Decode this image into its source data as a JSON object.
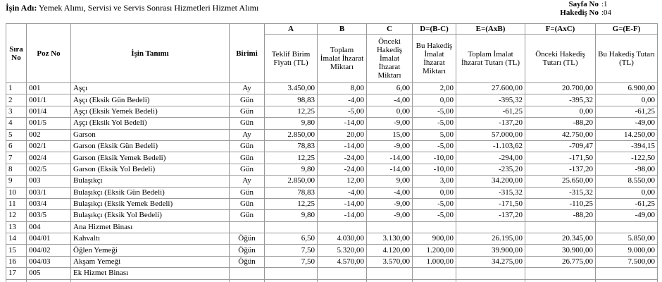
{
  "header": {
    "label": "İşin Adı:",
    "title": "Yemek Alımı, Servisi ve Servis Sonrası Hizmetleri Hizmet Alımı",
    "page_label": "Sayfa No",
    "page_value": ":1",
    "hakedis_label": "Hakediş No",
    "hakedis_value": ":04"
  },
  "table": {
    "columns": [
      "Sıra No",
      "Poz No",
      "İşin Tanımı",
      "Birimi",
      "Teklif Birim Fiyatı (TL)",
      "Toplam İmalat İhzarat Miktarı",
      "Önceki Hakediş İmalat İhzarat Miktarı",
      "Bu Hakediş İmalat İhzarat Miktarı",
      "Toplam İmalat İhzarat Tutarı (TL)",
      "Önceki Hakediş Tutarı (TL)",
      "Bu Hakediş Tutarı (TL)"
    ],
    "letters": [
      "A",
      "B",
      "C",
      "D=(B-C)",
      "E=(AxB)",
      "F=(AxC)",
      "G=(E-F)"
    ],
    "rows": [
      [
        "1",
        "001",
        "Aşçı",
        "Ay",
        "3.450,00",
        "8,00",
        "6,00",
        "2,00",
        "27.600,00",
        "20.700,00",
        "6.900,00"
      ],
      [
        "2",
        "001/1",
        "Aşçı (Eksik Gün Bedeli)",
        "Gün",
        "98,83",
        "-4,00",
        "-4,00",
        "0,00",
        "-395,32",
        "-395,32",
        "0,00"
      ],
      [
        "3",
        "001/4",
        "Aşçı (Eksik Yemek Bedeli)",
        "Gün",
        "12,25",
        "-5,00",
        "0,00",
        "-5,00",
        "-61,25",
        "0,00",
        "-61,25"
      ],
      [
        "4",
        "001/5",
        "Aşçı (Eksik Yol Bedeli)",
        "Gün",
        "9,80",
        "-14,00",
        "-9,00",
        "-5,00",
        "-137,20",
        "-88,20",
        "-49,00"
      ],
      [
        "5",
        "002",
        "Garson",
        "Ay",
        "2.850,00",
        "20,00",
        "15,00",
        "5,00",
        "57.000,00",
        "42.750,00",
        "14.250,00"
      ],
      [
        "6",
        "002/1",
        "Garson (Eksik Gün Bedeli)",
        "Gün",
        "78,83",
        "-14,00",
        "-9,00",
        "-5,00",
        "-1.103,62",
        "-709,47",
        "-394,15"
      ],
      [
        "7",
        "002/4",
        "Garson (Eksik Yemek Bedeli)",
        "Gün",
        "12,25",
        "-24,00",
        "-14,00",
        "-10,00",
        "-294,00",
        "-171,50",
        "-122,50"
      ],
      [
        "8",
        "002/5",
        "Garson (Eksik Yol Bedeli)",
        "Gün",
        "9,80",
        "-24,00",
        "-14,00",
        "-10,00",
        "-235,20",
        "-137,20",
        "-98,00"
      ],
      [
        "9",
        "003",
        "Bulaşıkçı",
        "Ay",
        "2.850,00",
        "12,00",
        "9,00",
        "3,00",
        "34.200,00",
        "25.650,00",
        "8.550,00"
      ],
      [
        "10",
        "003/1",
        "Bulaşıkçı (Eksik Gün Bedeli)",
        "Gün",
        "78,83",
        "-4,00",
        "-4,00",
        "0,00",
        "-315,32",
        "-315,32",
        "0,00"
      ],
      [
        "11",
        "003/4",
        "Bulaşıkçı (Eksik Yemek Bedeli)",
        "Gün",
        "12,25",
        "-14,00",
        "-9,00",
        "-5,00",
        "-171,50",
        "-110,25",
        "-61,25"
      ],
      [
        "12",
        "003/5",
        "Bulaşıkçı (Eksik Yol Bedeli)",
        "Gün",
        "9,80",
        "-14,00",
        "-9,00",
        "-5,00",
        "-137,20",
        "-88,20",
        "-49,00"
      ],
      [
        "13",
        "004",
        "Ana Hizmet Binası"
      ],
      [
        "14",
        "004/01",
        "Kahvaltı",
        "Öğün",
        "6,50",
        "4.030,00",
        "3.130,00",
        "900,00",
        "26.195,00",
        "20.345,00",
        "5.850,00"
      ],
      [
        "15",
        "004/02",
        "Öğlen Yemeği",
        "Öğün",
        "7,50",
        "5.320,00",
        "4.120,00",
        "1.200,00",
        "39.900,00",
        "30.900,00",
        "9.000,00"
      ],
      [
        "16",
        "004/03",
        "Akşam Yemeği",
        "Öğün",
        "7,50",
        "4.570,00",
        "3.570,00",
        "1.000,00",
        "34.275,00",
        "26.775,00",
        "7.500,00"
      ],
      [
        "17",
        "005",
        "Ek Hizmet Binası"
      ]
    ]
  }
}
